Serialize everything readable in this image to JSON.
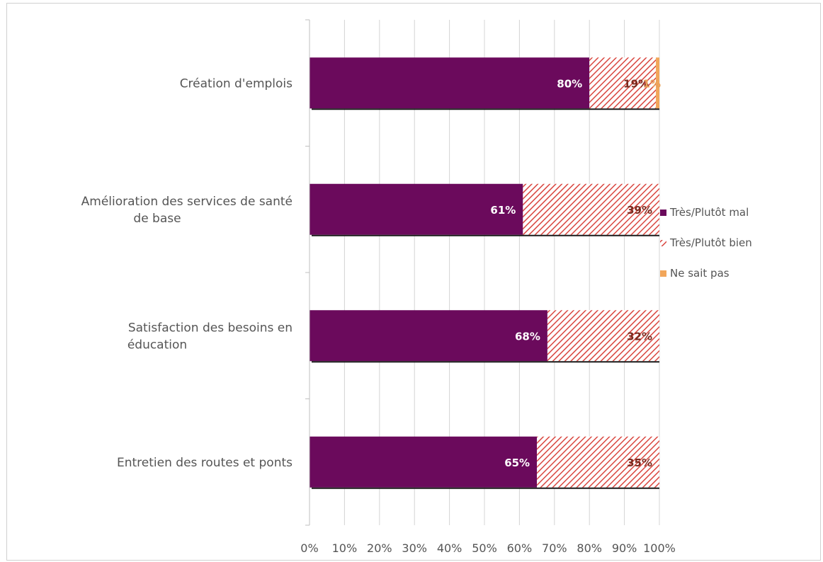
{
  "chart_data": {
    "type": "bar",
    "orientation": "horizontal",
    "stacked": true,
    "percent_stacked": true,
    "categories": [
      "Création d'emplois",
      "Amélioration des services de santé de base",
      "Satisfaction des besoins en éducation",
      "Entretien des routes et ponts"
    ],
    "series": [
      {
        "name": "Très/Plutôt mal",
        "values": [
          80,
          61,
          68,
          65
        ],
        "labels": [
          "80%",
          "61%",
          "68%",
          "65%"
        ],
        "color": "#6b0a5c",
        "pattern": "solid"
      },
      {
        "name": "Très/Plutôt bien",
        "values": [
          19,
          39,
          32,
          35
        ],
        "labels": [
          "19%",
          "39%",
          "32%",
          "35%"
        ],
        "color": "#d9463f",
        "pattern": "hatch"
      },
      {
        "name": "Ne sait pas",
        "values": [
          1,
          0,
          0,
          0
        ],
        "labels": [
          "1%",
          "",
          "",
          ""
        ],
        "color": "#f2a65a",
        "pattern": "solid"
      }
    ],
    "xlim": [
      0,
      100
    ],
    "x_ticks": [
      "0%",
      "10%",
      "20%",
      "30%",
      "40%",
      "50%",
      "60%",
      "70%",
      "80%",
      "90%",
      "100%"
    ],
    "grid": true,
    "legend_position": "right",
    "title": "",
    "xlabel": "",
    "ylabel": ""
  }
}
